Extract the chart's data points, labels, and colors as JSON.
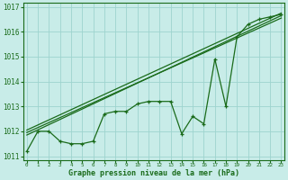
{
  "title": "Graphe pression niveau de la mer (hPa)",
  "xlabel_hours": [
    0,
    1,
    2,
    3,
    4,
    5,
    6,
    7,
    8,
    9,
    10,
    11,
    12,
    13,
    14,
    15,
    16,
    17,
    18,
    19,
    20,
    21,
    22,
    23
  ],
  "pressure_data": [
    1011.2,
    1012.0,
    1012.0,
    1011.6,
    1011.5,
    1011.5,
    1011.6,
    1012.7,
    1012.8,
    1012.8,
    1013.1,
    1013.2,
    1013.2,
    1013.2,
    1011.9,
    1012.6,
    1012.3,
    1014.9,
    1013.0,
    1015.8,
    1016.3,
    1016.5,
    1016.6,
    1016.7
  ],
  "trend_line1": [
    [
      0,
      1011.85
    ],
    [
      23,
      1016.65
    ]
  ],
  "trend_line2": [
    [
      0,
      1012.05
    ],
    [
      23,
      1016.75
    ]
  ],
  "trend_line3": [
    [
      0,
      1011.95
    ],
    [
      23,
      1016.55
    ]
  ],
  "ylim": [
    1010.85,
    1017.15
  ],
  "xlim": [
    -0.3,
    23.3
  ],
  "bg_color": "#c8ece8",
  "grid_color": "#9ed4ce",
  "line_color": "#1a6b1a",
  "text_color": "#1a6b1a",
  "title_color": "#1a6b1a",
  "font_family": "monospace",
  "yticks": [
    1011,
    1012,
    1013,
    1014,
    1015,
    1016,
    1017
  ]
}
